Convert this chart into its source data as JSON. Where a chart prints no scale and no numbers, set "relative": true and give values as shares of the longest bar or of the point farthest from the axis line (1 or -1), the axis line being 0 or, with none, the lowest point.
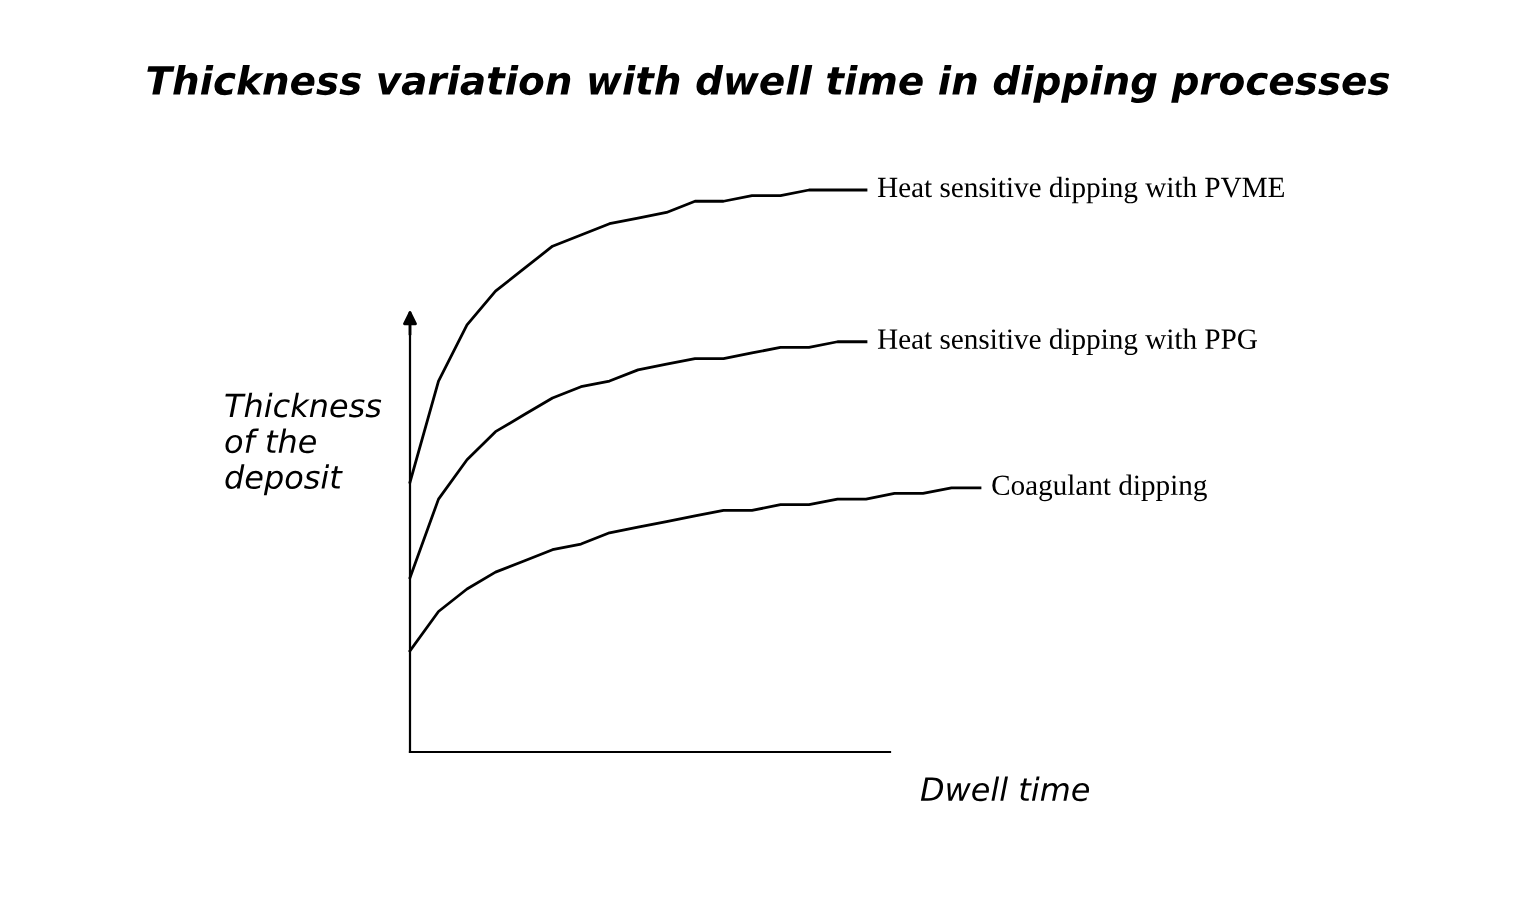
{
  "chart_data": {
    "type": "line",
    "title": "Thickness variation with dwell time in dipping processes",
    "xlabel": "Dwell time",
    "ylabel": "Thickness\nof the\ndeposit",
    "relative": true,
    "categories": [
      null,
      null,
      null,
      null,
      null,
      null,
      null,
      null,
      null,
      null,
      null,
      null,
      null,
      null,
      null,
      null,
      null,
      null,
      null,
      null,
      null
    ],
    "series": [
      {
        "name": "Heat sensitive dipping with PVME",
        "color": "#000000",
        "values": [
          0.48,
          0.66,
          0.76,
          0.82,
          0.86,
          0.9,
          0.92,
          0.94,
          0.95,
          0.96,
          0.98,
          0.98,
          0.99,
          0.99,
          1.0,
          1.0,
          1.0,
          null,
          null,
          null,
          null
        ]
      },
      {
        "name": "Heat sensitive dipping with PPG",
        "color": "#000000",
        "values": [
          0.31,
          0.45,
          0.52,
          0.57,
          0.6,
          0.63,
          0.65,
          0.66,
          0.68,
          0.69,
          0.7,
          0.7,
          0.71,
          0.72,
          0.72,
          0.73,
          0.73,
          null,
          null,
          null,
          null
        ]
      },
      {
        "name": "Coagulant dipping",
        "color": "#000000",
        "values": [
          0.18,
          0.25,
          0.29,
          0.32,
          0.34,
          0.36,
          0.37,
          0.39,
          0.4,
          0.41,
          0.42,
          0.43,
          0.43,
          0.44,
          0.44,
          0.45,
          0.45,
          0.46,
          0.46,
          0.47,
          0.47
        ]
      }
    ]
  }
}
